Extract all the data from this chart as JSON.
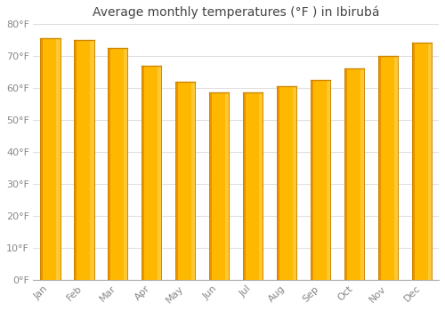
{
  "title_full": "Average monthly temperatures (°F ) in Ibirubá",
  "months": [
    "Jan",
    "Feb",
    "Mar",
    "Apr",
    "May",
    "Jun",
    "Jul",
    "Aug",
    "Sep",
    "Oct",
    "Nov",
    "Dec"
  ],
  "values": [
    75.5,
    75.0,
    72.5,
    67.0,
    62.0,
    58.5,
    58.5,
    60.5,
    62.5,
    66.0,
    70.0,
    74.0
  ],
  "bar_color_main": "#FFA500",
  "bar_color_light": "#FFD000",
  "bar_color_dark": "#E8820A",
  "ylim": [
    0,
    80
  ],
  "yticks": [
    0,
    10,
    20,
    30,
    40,
    50,
    60,
    70,
    80
  ],
  "ytick_labels": [
    "0°F",
    "10°F",
    "20°F",
    "30°F",
    "40°F",
    "50°F",
    "60°F",
    "70°F",
    "80°F"
  ],
  "background_color": "#FFFFFF",
  "grid_color": "#E0E0E0",
  "tick_color": "#888888",
  "title_color": "#444444",
  "title_fontsize": 10,
  "tick_fontsize": 8,
  "bar_width": 0.6
}
